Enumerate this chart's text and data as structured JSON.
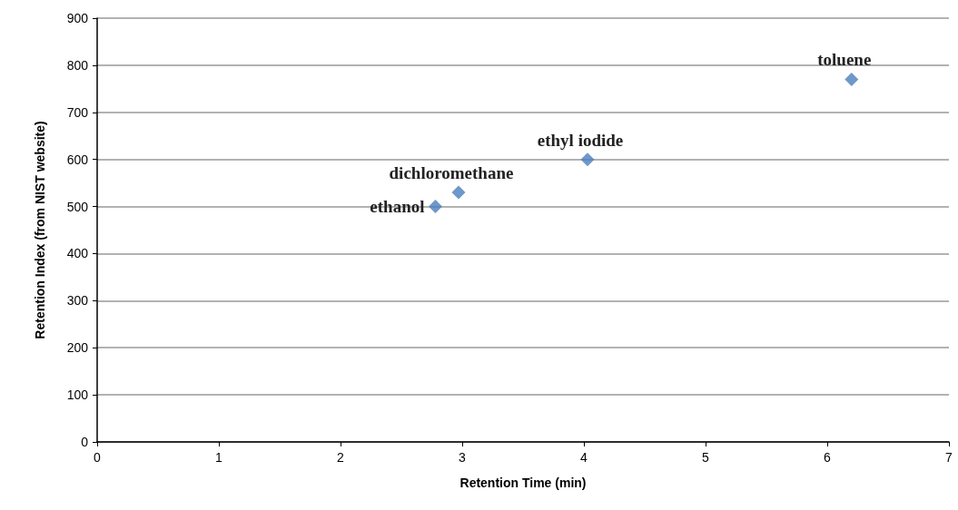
{
  "chart_data": {
    "type": "scatter",
    "xlabel": "Retention Time (min)",
    "ylabel": "Retention Index (from NIST website)",
    "x": [
      2.78,
      2.97,
      4.03,
      6.2
    ],
    "series": [
      {
        "color": "#4a7ebb",
        "values": [
          500,
          530,
          600,
          770
        ]
      }
    ],
    "annotations": [
      {
        "text": "ethanol",
        "x": 2.78,
        "y": 500
      },
      {
        "text": "dichloromethane",
        "x": 2.97,
        "y": 530
      },
      {
        "text": "ethyl iodide",
        "x": 4.03,
        "y": 600
      },
      {
        "text": "toluene",
        "x": 6.2,
        "y": 770
      }
    ],
    "xlim": [
      0,
      7
    ],
    "xticks": [
      0,
      1,
      2,
      3,
      4,
      5,
      6,
      7
    ],
    "ylim": [
      0,
      900
    ],
    "yticks": [
      0,
      100,
      200,
      300,
      400,
      500,
      600,
      700,
      800,
      900
    ],
    "grid": "y",
    "marker": "diamond"
  }
}
